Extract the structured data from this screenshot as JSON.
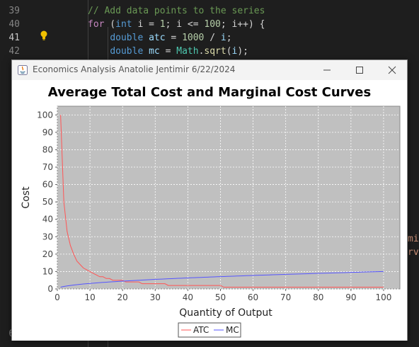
{
  "editor": {
    "line_numbers": [
      "39",
      "40",
      "41",
      "42",
      "4",
      "4",
      "4",
      "4",
      "4",
      "4",
      "4",
      "4",
      "4",
      "4",
      "5",
      "5",
      "5",
      "5",
      "5",
      "5",
      "5",
      "5",
      "6",
      "6",
      "63"
    ],
    "code_lines": [
      {
        "parts": [
          {
            "t": "// Add data points to the series",
            "c": "#6a9955"
          }
        ]
      },
      {
        "parts": [
          {
            "t": "for",
            "c": "#c586c0"
          },
          {
            "t": " (",
            "c": "#d4d4d4"
          },
          {
            "t": "int",
            "c": "#569cd6"
          },
          {
            "t": " i = ",
            "c": "#d4d4d4"
          },
          {
            "t": "1",
            "c": "#b5cea8"
          },
          {
            "t": "; i <= ",
            "c": "#d4d4d4"
          },
          {
            "t": "100",
            "c": "#b5cea8"
          },
          {
            "t": "; i++) {",
            "c": "#d4d4d4"
          }
        ]
      },
      {
        "parts": [
          {
            "t": "    ",
            "c": "#d4d4d4"
          },
          {
            "t": "double",
            "c": "#569cd6"
          },
          {
            "t": " ",
            "c": "#d4d4d4"
          },
          {
            "t": "atc",
            "c": "#9cdcfe"
          },
          {
            "t": " = ",
            "c": "#d4d4d4"
          },
          {
            "t": "1000",
            "c": "#b5cea8"
          },
          {
            "t": " / ",
            "c": "#d4d4d4"
          },
          {
            "t": "i",
            "c": "#9cdcfe"
          },
          {
            "t": ";",
            "c": "#d4d4d4"
          }
        ]
      },
      {
        "parts": [
          {
            "t": "    ",
            "c": "#d4d4d4"
          },
          {
            "t": "double",
            "c": "#569cd6"
          },
          {
            "t": " ",
            "c": "#d4d4d4"
          },
          {
            "t": "mc",
            "c": "#9cdcfe"
          },
          {
            "t": " = ",
            "c": "#d4d4d4"
          },
          {
            "t": "Math",
            "c": "#4ec9b0"
          },
          {
            "t": ".",
            "c": "#d4d4d4"
          },
          {
            "t": "sqrt",
            "c": "#dcdcaa"
          },
          {
            "t": "(",
            "c": "#d4d4d4"
          },
          {
            "t": "i",
            "c": "#9cdcfe"
          },
          {
            "t": ");",
            "c": "#d4d4d4"
          }
        ]
      }
    ],
    "right_peek": [
      "mi",
      "rv"
    ]
  },
  "window": {
    "title": "Economics Analysis Anatolie Jentimir 6/22/2024",
    "minimize_icon": "minimize-icon",
    "maximize_icon": "maximize-icon",
    "close_icon": "close-icon"
  },
  "chart_data": {
    "type": "line",
    "title": "Average Total Cost and Marginal Cost Curves",
    "xlabel": "Quantity of Output",
    "ylabel": "Cost",
    "xlim": [
      0,
      105
    ],
    "ylim": [
      0,
      105
    ],
    "x_ticks": [
      0,
      10,
      20,
      30,
      40,
      50,
      60,
      70,
      80,
      90,
      100
    ],
    "y_ticks": [
      0,
      10,
      20,
      30,
      40,
      50,
      60,
      70,
      80,
      90,
      100
    ],
    "grid": true,
    "legend_position": "bottom",
    "plot_background": "#c0c0c0",
    "series": [
      {
        "name": "ATC",
        "color": "#ff5555",
        "x": [
          1,
          2,
          3,
          4,
          5,
          6,
          7,
          8,
          9,
          10,
          11,
          12,
          13,
          14,
          15,
          16,
          17,
          18,
          19,
          20,
          21,
          22,
          23,
          24,
          25,
          26,
          27,
          28,
          29,
          30,
          31,
          32,
          33,
          34,
          35,
          36,
          37,
          38,
          39,
          40,
          41,
          42,
          43,
          44,
          45,
          46,
          47,
          48,
          49,
          50,
          51,
          52,
          53,
          54,
          55,
          56,
          57,
          58,
          59,
          60,
          61,
          62,
          63,
          64,
          65,
          66,
          67,
          68,
          69,
          70,
          71,
          72,
          73,
          74,
          75,
          76,
          77,
          78,
          79,
          80,
          81,
          82,
          83,
          84,
          85,
          86,
          87,
          88,
          89,
          90,
          91,
          92,
          93,
          94,
          95,
          96,
          97,
          98,
          99,
          100
        ],
        "y": [
          100,
          50,
          33,
          25,
          20,
          16,
          14,
          12,
          11,
          10,
          9,
          8,
          7,
          7,
          6,
          6,
          5,
          5,
          5,
          5,
          4,
          4,
          4,
          4,
          4,
          3,
          3,
          3,
          3,
          3,
          3,
          3,
          3,
          2,
          2,
          2,
          2,
          2,
          2,
          2,
          2,
          2,
          2,
          2,
          2,
          2,
          2,
          2,
          2,
          2,
          1,
          1,
          1,
          1,
          1,
          1,
          1,
          1,
          1,
          1,
          1,
          1,
          1,
          1,
          1,
          1,
          1,
          1,
          1,
          1,
          1,
          1,
          1,
          1,
          1,
          1,
          1,
          1,
          1,
          1,
          1,
          1,
          1,
          1,
          1,
          1,
          1,
          1,
          1,
          1,
          1,
          1,
          1,
          1,
          1,
          1,
          1,
          1,
          1,
          1
        ]
      },
      {
        "name": "MC",
        "color": "#5555ff",
        "x": [
          1,
          2,
          3,
          4,
          5,
          6,
          7,
          8,
          9,
          10,
          11,
          12,
          13,
          14,
          15,
          16,
          17,
          18,
          19,
          20,
          21,
          22,
          23,
          24,
          25,
          26,
          27,
          28,
          29,
          30,
          31,
          32,
          33,
          34,
          35,
          36,
          37,
          38,
          39,
          40,
          41,
          42,
          43,
          44,
          45,
          46,
          47,
          48,
          49,
          50,
          51,
          52,
          53,
          54,
          55,
          56,
          57,
          58,
          59,
          60,
          61,
          62,
          63,
          64,
          65,
          66,
          67,
          68,
          69,
          70,
          71,
          72,
          73,
          74,
          75,
          76,
          77,
          78,
          79,
          80,
          81,
          82,
          83,
          84,
          85,
          86,
          87,
          88,
          89,
          90,
          91,
          92,
          93,
          94,
          95,
          96,
          97,
          98,
          99,
          100
        ],
        "y": [
          1,
          1.41,
          1.73,
          2,
          2.24,
          2.45,
          2.65,
          2.83,
          3,
          3.16,
          3.32,
          3.46,
          3.61,
          3.74,
          3.87,
          4,
          4.12,
          4.24,
          4.36,
          4.47,
          4.58,
          4.69,
          4.8,
          4.9,
          5,
          5.1,
          5.2,
          5.29,
          5.39,
          5.48,
          5.57,
          5.66,
          5.74,
          5.83,
          5.92,
          6,
          6.08,
          6.16,
          6.24,
          6.32,
          6.4,
          6.48,
          6.56,
          6.63,
          6.71,
          6.78,
          6.86,
          6.93,
          7,
          7.07,
          7.14,
          7.21,
          7.28,
          7.35,
          7.42,
          7.48,
          7.55,
          7.62,
          7.68,
          7.75,
          7.81,
          7.87,
          7.94,
          8,
          8.06,
          8.12,
          8.19,
          8.25,
          8.31,
          8.37,
          8.43,
          8.49,
          8.54,
          8.6,
          8.66,
          8.72,
          8.77,
          8.83,
          8.89,
          8.94,
          9,
          9.06,
          9.11,
          9.17,
          9.22,
          9.27,
          9.33,
          9.38,
          9.43,
          9.49,
          9.54,
          9.59,
          9.64,
          9.7,
          9.75,
          9.8,
          9.85,
          9.9,
          9.95,
          10
        ]
      }
    ]
  }
}
